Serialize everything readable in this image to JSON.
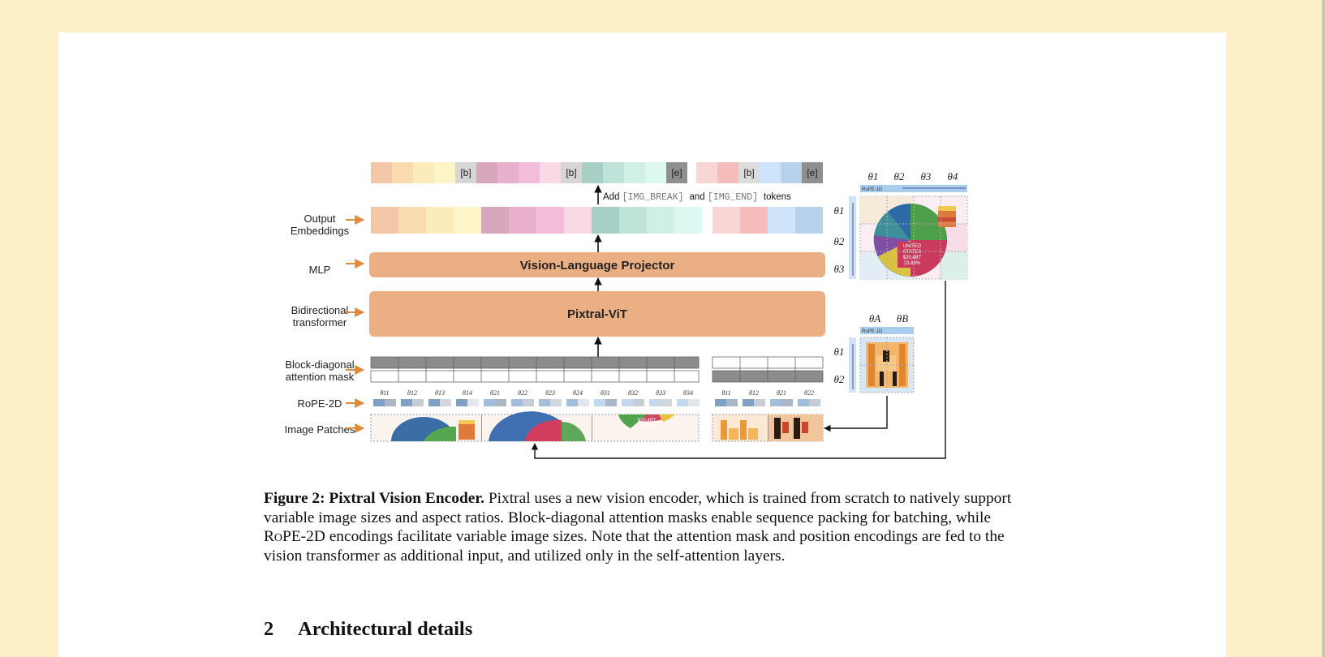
{
  "figure": {
    "row_labels": {
      "output_embeddings_line1": "Output",
      "output_embeddings_line2": "Embeddings",
      "mlp": "MLP",
      "bidirectional_line1": "Bidirectional",
      "bidirectional_line2": "transformer",
      "block_diagonal_line1": "Block-diagonal",
      "block_diagonal_line2": "attention mask",
      "rope2d": "RoPE-2D",
      "image_patches": "Image Patches"
    },
    "projector_label": "Vision-Language Projector",
    "vit_label": "Pixtral-ViT",
    "token_break": "[b]",
    "token_end": "[e]",
    "add_tokens_prefix": "Add",
    "add_tokens_break": "[IMG_BREAK]",
    "add_tokens_and": "and",
    "add_tokens_end": "[IMG_END]",
    "add_tokens_suffix": "tokens",
    "rope_1d_label": "RoPE-1D",
    "theta_cols_big": [
      "θ1",
      "θ2",
      "θ3",
      "θ4"
    ],
    "theta_rows_big": [
      "θ1",
      "θ2",
      "θ3"
    ],
    "theta_cols_small": [
      "θA",
      "θB"
    ],
    "theta_rows_small": [
      "θ1",
      "θ2"
    ],
    "rope_thetas_a": [
      "θ11",
      "θ12",
      "θ13",
      "θ14",
      "θ21",
      "θ22",
      "θ23",
      "θ24",
      "θ31",
      "θ32",
      "θ33",
      "θ34"
    ],
    "rope_thetas_b": [
      "θ11",
      "θ12",
      "θ21",
      "θ22"
    ],
    "pie_text_1": "UNITED",
    "pie_text_2": "STATES",
    "pie_text_3": "$20.4BT",
    "pie_text_4": "23.89%",
    "colors": {
      "orange_arrow": "#e08a3c",
      "projector": "#ebaf84",
      "vit": "#ebaf84",
      "mask_gray": "#8c8c8c"
    }
  },
  "caption": {
    "label": "Figure 2: Pixtral Vision Encoder.",
    "text_1": "Pixtral uses a new vision encoder, which is trained from scratch to natively support variable image sizes and aspect ratios. Block-diagonal attention masks enable sequence packing for batching, while",
    "rope_smallcaps": "RoPE-2D",
    "text_2": "encodings facilitate variable image sizes. Note that the attention mask and position encodings are fed to the vision transformer as additional input, and utilized only in the self-attention layers."
  },
  "section": {
    "number": "2",
    "title": "Architectural details"
  }
}
